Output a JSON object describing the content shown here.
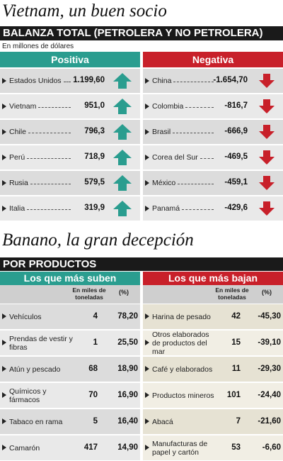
{
  "balanza": {
    "title": "Vietnam, un buen socio",
    "bar": "BALANZA TOTAL (PETROLERA Y NO PETROLERA)",
    "unit": "En millones de dólares",
    "positive": {
      "header": "Positiva",
      "rows": [
        [
          "Estados Unidos",
          "1.199,60"
        ],
        [
          "Vietnam",
          "951,0"
        ],
        [
          "Chile",
          "796,3"
        ],
        [
          "Perú",
          "718,9"
        ],
        [
          "Rusia",
          "579,5"
        ],
        [
          "Italia",
          "319,9"
        ]
      ]
    },
    "negative": {
      "header": "Negativa",
      "rows": [
        [
          "China",
          "-1.654,70"
        ],
        [
          "Colombia",
          "-816,7"
        ],
        [
          "Brasil",
          "-666,9"
        ],
        [
          "Corea del Sur",
          "-469,5"
        ],
        [
          "México",
          "-459,1"
        ],
        [
          "Panamá",
          "-429,6"
        ]
      ]
    }
  },
  "productos": {
    "title": "Banano, la gran decepción",
    "bar": "POR PRODUCTOS",
    "up": {
      "header": "Los que más suben",
      "col1": "En miles de toneladas",
      "col2": "(%)",
      "rows": [
        [
          "Vehículos",
          "4",
          "78,20"
        ],
        [
          "Prendas de vestir y fibras",
          "1",
          "25,50"
        ],
        [
          "Atún y pescado",
          "68",
          "18,90"
        ],
        [
          "Químicos y fármacos",
          "70",
          "16,90"
        ],
        [
          "Tabaco en rama",
          "5",
          "16,40"
        ],
        [
          "Camarón",
          "417",
          "14,90"
        ]
      ]
    },
    "down": {
      "header": "Los que más bajan",
      "col1": "En miles de toneladas",
      "col2": "(%)",
      "rows": [
        [
          "Harina de pesado",
          "42",
          "-45,30"
        ],
        [
          "Otros elaborados de productos del mar",
          "15",
          "-39,10"
        ],
        [
          "Café y elaborados",
          "11",
          "-29,30"
        ],
        [
          "Productos mineros",
          "101",
          "-24,40"
        ],
        [
          "Abacá",
          "7",
          "-21,60"
        ],
        [
          "Manufacturas de papel y cartón",
          "53",
          "-6,60"
        ]
      ]
    }
  }
}
